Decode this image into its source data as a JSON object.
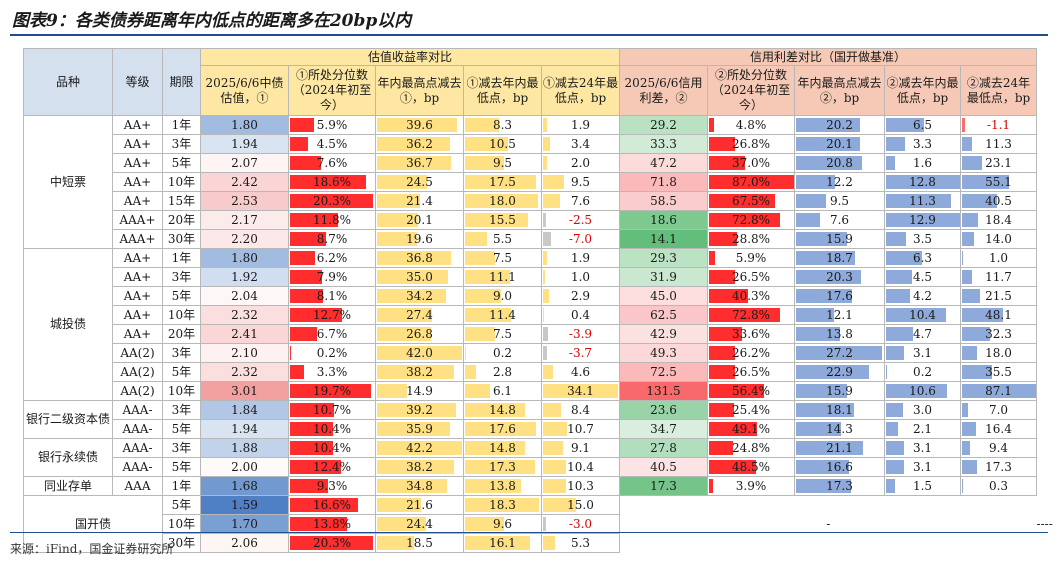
{
  "title": "图表9：各类债券距离年内低点的距离多在20bp以内",
  "source": "来源：iFind，国金证券研究所",
  "colors": {
    "head_left": "#d5e0ef",
    "head_yield": "#fde7a3",
    "head_spread": "#f6c9b6",
    "blue_bar": "#8eaadb",
    "red_bar": "#ff2d2d",
    "yellow_bar": "#ffe083",
    "gray_bar": "#c8c8c8"
  },
  "headers": {
    "variety": "品种",
    "grade": "等级",
    "term": "期限",
    "yield_group": "估值收益率对比",
    "spread_group": "信用利差对比（国开做基准）",
    "cols": [
      "2025/6/6中债估值，①",
      "①所处分位数（2024年初至今）",
      "年内最高点减去①，bp",
      "①减去年内最低点，bp",
      "①减去24年最低点，bp",
      "2025/6/6信用利差，②",
      "②所处分位数（2024年初至今）",
      "年内最高点减去②，bp",
      "②减去年内最低点，bp",
      "②减去24年最低点，bp"
    ]
  },
  "groups": [
    {
      "name": "中短票",
      "rows": 7
    },
    {
      "name": "城投债",
      "rows": 8
    },
    {
      "name": "银行二级资本债",
      "rows": 2
    },
    {
      "name": "银行永续债",
      "rows": 2
    },
    {
      "name": "同业存单",
      "rows": 1
    },
    {
      "name": "国开债",
      "rows": 3
    }
  ],
  "spread_na": "-",
  "rows": [
    {
      "grade": "AA+",
      "term": "1年",
      "y": "1.80",
      "yp": "5.9%",
      "yh": "39.6",
      "yl": "8.3",
      "y24": "1.9",
      "s": "29.2",
      "sp": "4.8%",
      "sh": "20.2",
      "sl": "6.5",
      "s24": "-1.1"
    },
    {
      "grade": "AA+",
      "term": "3年",
      "y": "1.94",
      "yp": "4.5%",
      "yh": "36.2",
      "yl": "10.5",
      "y24": "3.4",
      "s": "33.3",
      "sp": "26.8%",
      "sh": "20.1",
      "sl": "3.3",
      "s24": "11.3"
    },
    {
      "grade": "AA+",
      "term": "5年",
      "y": "2.07",
      "yp": "7.6%",
      "yh": "36.7",
      "yl": "9.5",
      "y24": "2.0",
      "s": "47.2",
      "sp": "37.0%",
      "sh": "20.8",
      "sl": "1.6",
      "s24": "23.1"
    },
    {
      "grade": "AA+",
      "term": "10年",
      "y": "2.42",
      "yp": "18.6%",
      "yh": "24.5",
      "yl": "17.5",
      "y24": "9.5",
      "s": "71.8",
      "sp": "87.0%",
      "sh": "12.2",
      "sl": "12.8",
      "s24": "55.1"
    },
    {
      "grade": "AA+",
      "term": "15年",
      "y": "2.53",
      "yp": "20.3%",
      "yh": "21.4",
      "yl": "18.0",
      "y24": "7.6",
      "s": "58.5",
      "sp": "67.5%",
      "sh": "9.5",
      "sl": "11.3",
      "s24": "40.5"
    },
    {
      "grade": "AAA+",
      "term": "20年",
      "y": "2.17",
      "yp": "11.8%",
      "yh": "20.1",
      "yl": "15.5",
      "y24": "-2.5",
      "s": "18.6",
      "sp": "72.8%",
      "sh": "7.6",
      "sl": "12.9",
      "s24": "18.4"
    },
    {
      "grade": "AAA+",
      "term": "30年",
      "y": "2.20",
      "yp": "8.7%",
      "yh": "19.6",
      "yl": "5.5",
      "y24": "-7.0",
      "s": "14.1",
      "sp": "28.8%",
      "sh": "15.9",
      "sl": "3.5",
      "s24": "14.0"
    },
    {
      "grade": "AA+",
      "term": "1年",
      "y": "1.80",
      "yp": "6.2%",
      "yh": "36.8",
      "yl": "7.5",
      "y24": "1.9",
      "s": "29.3",
      "sp": "5.9%",
      "sh": "18.7",
      "sl": "6.3",
      "s24": "1.0"
    },
    {
      "grade": "AA+",
      "term": "3年",
      "y": "1.92",
      "yp": "7.9%",
      "yh": "35.0",
      "yl": "11.1",
      "y24": "1.0",
      "s": "31.9",
      "sp": "26.5%",
      "sh": "20.3",
      "sl": "4.5",
      "s24": "11.7"
    },
    {
      "grade": "AA+",
      "term": "5年",
      "y": "2.04",
      "yp": "8.1%",
      "yh": "34.2",
      "yl": "9.0",
      "y24": "2.9",
      "s": "45.0",
      "sp": "40.3%",
      "sh": "17.6",
      "sl": "4.2",
      "s24": "21.5"
    },
    {
      "grade": "AA+",
      "term": "10年",
      "y": "2.32",
      "yp": "12.7%",
      "yh": "27.4",
      "yl": "11.4",
      "y24": "0.4",
      "s": "62.5",
      "sp": "72.8%",
      "sh": "12.1",
      "sl": "10.4",
      "s24": "48.1"
    },
    {
      "grade": "AA+",
      "term": "20年",
      "y": "2.41",
      "yp": "6.7%",
      "yh": "26.8",
      "yl": "7.5",
      "y24": "-3.9",
      "s": "42.9",
      "sp": "33.6%",
      "sh": "13.8",
      "sl": "4.7",
      "s24": "32.3"
    },
    {
      "grade": "AA(2)",
      "term": "3年",
      "y": "2.10",
      "yp": "0.2%",
      "yh": "42.0",
      "yl": "0.2",
      "y24": "-3.7",
      "s": "49.3",
      "sp": "26.2%",
      "sh": "27.2",
      "sl": "3.1",
      "s24": "18.0"
    },
    {
      "grade": "AA(2)",
      "term": "5年",
      "y": "2.32",
      "yp": "3.3%",
      "yh": "38.2",
      "yl": "2.8",
      "y24": "4.6",
      "s": "72.5",
      "sp": "26.5%",
      "sh": "22.9",
      "sl": "0.2",
      "s24": "35.5"
    },
    {
      "grade": "AA(2)",
      "term": "10年",
      "y": "3.01",
      "yp": "19.7%",
      "yh": "14.9",
      "yl": "6.1",
      "y24": "34.1",
      "s": "131.5",
      "sp": "56.4%",
      "sh": "15.9",
      "sl": "10.6",
      "s24": "87.1"
    },
    {
      "grade": "AAA-",
      "term": "3年",
      "y": "1.84",
      "yp": "10.7%",
      "yh": "39.2",
      "yl": "14.8",
      "y24": "8.4",
      "s": "23.6",
      "sp": "25.4%",
      "sh": "18.1",
      "sl": "3.0",
      "s24": "7.0"
    },
    {
      "grade": "AAA-",
      "term": "5年",
      "y": "1.94",
      "yp": "10.4%",
      "yh": "35.9",
      "yl": "17.6",
      "y24": "10.7",
      "s": "34.7",
      "sp": "49.1%",
      "sh": "14.3",
      "sl": "2.1",
      "s24": "16.4"
    },
    {
      "grade": "AAA-",
      "term": "3年",
      "y": "1.88",
      "yp": "10.4%",
      "yh": "42.2",
      "yl": "14.8",
      "y24": "9.1",
      "s": "27.8",
      "sp": "24.8%",
      "sh": "21.1",
      "sl": "3.1",
      "s24": "9.4"
    },
    {
      "grade": "AAA-",
      "term": "5年",
      "y": "2.00",
      "yp": "12.4%",
      "yh": "38.2",
      "yl": "17.3",
      "y24": "10.4",
      "s": "40.5",
      "sp": "48.5%",
      "sh": "16.6",
      "sl": "3.1",
      "s24": "17.3"
    },
    {
      "grade": "AAA",
      "term": "1年",
      "y": "1.68",
      "yp": "9.3%",
      "yh": "34.8",
      "yl": "13.8",
      "y24": "10.3",
      "s": "17.3",
      "sp": "3.9%",
      "sh": "17.3",
      "sl": "1.5",
      "s24": "0.3"
    },
    {
      "grade": "",
      "term": "5年",
      "y": "1.59",
      "yp": "16.6%",
      "yh": "21.6",
      "yl": "18.3",
      "y24": "15.0",
      "s": null,
      "sp": null,
      "sh": null,
      "sl": null,
      "s24": null
    },
    {
      "grade": "",
      "term": "10年",
      "y": "1.70",
      "yp": "13.8%",
      "yh": "24.4",
      "yl": "9.6",
      "y24": "-3.0",
      "s": null,
      "sp": null,
      "sh": null,
      "sl": null,
      "s24": null
    },
    {
      "grade": "",
      "term": "30年",
      "y": "2.06",
      "yp": "20.3%",
      "yh": "18.5",
      "yl": "16.1",
      "y24": "5.3",
      "s": null,
      "sp": null,
      "sh": null,
      "sl": null,
      "s24": null
    }
  ]
}
